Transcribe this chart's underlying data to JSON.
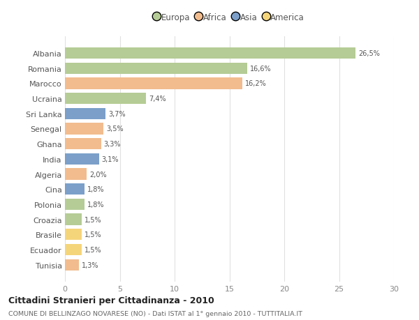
{
  "countries": [
    "Albania",
    "Romania",
    "Marocco",
    "Ucraina",
    "Sri Lanka",
    "Senegal",
    "Ghana",
    "India",
    "Algeria",
    "Cina",
    "Polonia",
    "Croazia",
    "Brasile",
    "Ecuador",
    "Tunisia"
  ],
  "values": [
    26.5,
    16.6,
    16.2,
    7.4,
    3.7,
    3.5,
    3.3,
    3.1,
    2.0,
    1.8,
    1.8,
    1.5,
    1.5,
    1.5,
    1.3
  ],
  "labels": [
    "26,5%",
    "16,6%",
    "16,2%",
    "7,4%",
    "3,7%",
    "3,5%",
    "3,3%",
    "3,1%",
    "2,0%",
    "1,8%",
    "1,8%",
    "1,5%",
    "1,5%",
    "1,5%",
    "1,3%"
  ],
  "colors": [
    "#b5cc96",
    "#b5cc96",
    "#f2bc8e",
    "#b5cc96",
    "#7b9fc9",
    "#f2bc8e",
    "#f2bc8e",
    "#7b9fc9",
    "#f2bc8e",
    "#7b9fc9",
    "#b5cc96",
    "#b5cc96",
    "#f5d57a",
    "#f5d57a",
    "#f2bc8e"
  ],
  "legend_labels": [
    "Europa",
    "Africa",
    "Asia",
    "America"
  ],
  "legend_colors": [
    "#b5cc96",
    "#f2bc8e",
    "#7b9fc9",
    "#f5d57a"
  ],
  "title": "Cittadini Stranieri per Cittadinanza - 2010",
  "subtitle": "COMUNE DI BELLINZAGO NOVARESE (NO) - Dati ISTAT al 1° gennaio 2010 - TUTTITALIA.IT",
  "xlim": [
    0,
    30
  ],
  "xticks": [
    0,
    5,
    10,
    15,
    20,
    25,
    30
  ],
  "bg_color": "#ffffff",
  "grid_color": "#e0e0e0",
  "bar_height": 0.75
}
